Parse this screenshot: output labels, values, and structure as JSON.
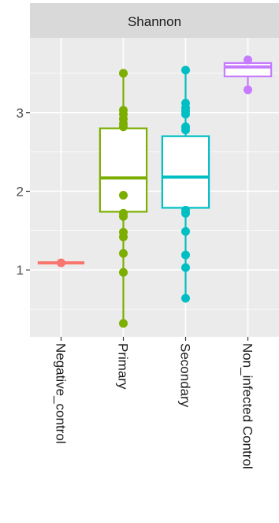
{
  "chart_data": {
    "type": "boxplot",
    "facet_label": "Shannon",
    "xlabel": "",
    "ylabel": "",
    "ylim": [
      0.15,
      3.95
    ],
    "yticks": [
      1,
      2,
      3
    ],
    "grid": true,
    "legend": "none",
    "categories": [
      "Negative_control",
      "Primary",
      "Secondary",
      "Non_infected Control"
    ],
    "groups": [
      {
        "category": "Negative_control",
        "color": "#F8766D",
        "box": {
          "min": 1.09,
          "q1": 1.09,
          "median": 1.09,
          "q3": 1.09,
          "max": 1.09
        },
        "points": [
          1.09
        ]
      },
      {
        "category": "Primary",
        "color": "#7CAE00",
        "box": {
          "min": 0.32,
          "q1": 1.74,
          "median": 2.17,
          "q3": 2.8,
          "max": 3.5
        },
        "points": [
          3.5,
          3.03,
          2.98,
          2.92,
          2.86,
          2.82,
          1.95,
          1.72,
          1.68,
          1.48,
          1.42,
          1.21,
          0.97,
          0.32
        ]
      },
      {
        "category": "Secondary",
        "color": "#00BFC4",
        "box": {
          "min": 0.64,
          "q1": 1.79,
          "median": 2.18,
          "q3": 2.7,
          "max": 3.54
        },
        "points": [
          3.54,
          3.12,
          3.06,
          3.02,
          2.98,
          2.82,
          2.78,
          1.76,
          1.72,
          1.49,
          1.19,
          1.03,
          0.64
        ]
      },
      {
        "category": "Non_infected Control",
        "color": "#C77CFF",
        "box": {
          "min": 3.29,
          "q1": 3.46,
          "median": 3.58,
          "q3": 3.63,
          "max": 3.67
        },
        "points": [
          3.67,
          3.29
        ]
      }
    ]
  }
}
